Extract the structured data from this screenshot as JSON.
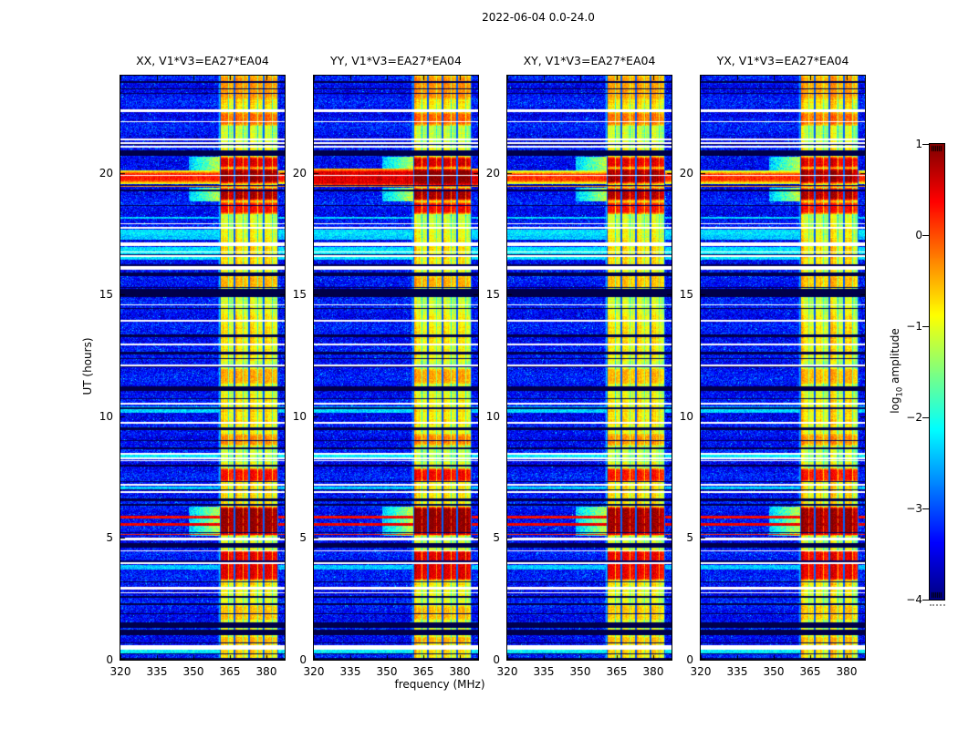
{
  "figure": {
    "title": "2022-06-04 0.0-24.0",
    "xlabel": "frequency (MHz)",
    "ylabel": "UT (hours)"
  },
  "axes": {
    "x_ticks": [
      320,
      335,
      350,
      365,
      380
    ],
    "x_tick_labels": [
      "320",
      "335",
      "350",
      "365",
      "380"
    ],
    "y_ticks": [
      0,
      5,
      10,
      15,
      20
    ],
    "y_tick_labels": [
      "0",
      "5",
      "10",
      "15",
      "20"
    ],
    "x_range": [
      320,
      387.5
    ],
    "y_range": [
      0,
      24
    ]
  },
  "colorbar": {
    "label_prefix": "log",
    "label_sub": "10",
    "label_suffix": " amplitude",
    "ticks": [
      1,
      0,
      -1,
      -2,
      -3,
      -4
    ],
    "tick_labels": [
      "1",
      "0",
      "−1",
      "−2",
      "−3",
      "−4"
    ],
    "range": [
      -4,
      1
    ],
    "colormap": "jet"
  },
  "chart_data": {
    "type": "heatmap",
    "title": "2022-06-04 0.0-24.0",
    "xlabel": "frequency (MHz)",
    "ylabel": "UT (hours)",
    "value_label": "log10 amplitude",
    "x_range": [
      320,
      387.5
    ],
    "y_range": [
      0,
      24
    ],
    "value_range": [
      -4,
      1
    ],
    "colormap": "jet",
    "panels": [
      {
        "title": "XX, V1*V3=EA27*EA04",
        "seed": 11,
        "boost": 0.0,
        "band_t": [
          19.7,
          19.96
        ],
        "band_v": 0.25
      },
      {
        "title": "YY, V1*V3=EA27*EA04",
        "seed": 23,
        "boost": 0.08,
        "band_t": [
          19.58,
          20.04
        ],
        "band_v": 0.55
      },
      {
        "title": "XY, V1*V3=EA27*EA04",
        "seed": 37,
        "boost": -0.05,
        "band_t": [
          19.7,
          19.94
        ],
        "band_v": 0.12
      },
      {
        "title": "YX, V1*V3=EA27*EA04",
        "seed": 51,
        "boost": -0.03,
        "band_t": [
          19.7,
          19.94
        ],
        "band_v": 0.15
      }
    ],
    "background_value": -3.35,
    "noise_sigma": 0.27,
    "rfi_band": {
      "f_start": 361,
      "f_end": 385,
      "sub_band_mhz": 6,
      "quiet_value": -1.0
    },
    "glow_start_mhz": 348,
    "scan_line_spacing_hours": 0.42,
    "events": [
      [
        23.02,
        24.0,
        "burst",
        -0.35,
        0
      ],
      [
        23.7,
        23.76,
        "black",
        0
      ],
      [
        23.42,
        23.47,
        "black",
        0
      ],
      [
        22.52,
        22.63,
        "white",
        0
      ],
      [
        21.95,
        22.5,
        "burst",
        -0.12,
        0
      ],
      [
        22.08,
        22.14,
        "white",
        0
      ],
      [
        21.36,
        21.42,
        "white",
        0
      ],
      [
        21.21,
        21.27,
        "white",
        0
      ],
      [
        21.06,
        21.12,
        "white",
        0
      ],
      [
        20.72,
        20.92,
        "black",
        0
      ],
      [
        20.2,
        20.68,
        "burst",
        0.55,
        1
      ],
      [
        19.55,
        20.2,
        "burst",
        0.9,
        1
      ],
      [
        19.42,
        19.48,
        "orange",
        -0.35
      ],
      [
        19.25,
        19.31,
        "black",
        0
      ],
      [
        18.85,
        19.4,
        "burst",
        0.8,
        1
      ],
      [
        18.3,
        18.82,
        "burst",
        0.35,
        0
      ],
      [
        18.12,
        18.2,
        "cyan",
        0
      ],
      [
        17.88,
        17.94,
        "white",
        0
      ],
      [
        17.72,
        17.78,
        "white",
        0
      ],
      [
        17.25,
        17.66,
        "cyan",
        0
      ],
      [
        16.98,
        17.16,
        "white",
        0
      ],
      [
        16.45,
        16.95,
        "cyan",
        0
      ],
      [
        16.73,
        16.79,
        "white",
        0
      ],
      [
        16.55,
        16.61,
        "white",
        0
      ],
      [
        16.02,
        16.18,
        "white",
        0
      ],
      [
        15.78,
        15.93,
        "black",
        0
      ],
      [
        15.27,
        15.75,
        "burst",
        -0.5,
        0
      ],
      [
        14.9,
        15.22,
        "black",
        0
      ],
      [
        14.55,
        14.62,
        "white",
        0
      ],
      [
        14.4,
        14.46,
        "black",
        0
      ],
      [
        13.9,
        13.97,
        "white",
        0
      ],
      [
        13.25,
        13.38,
        "black",
        0
      ],
      [
        12.92,
        12.98,
        "white",
        0
      ],
      [
        12.55,
        12.66,
        "black",
        0
      ],
      [
        12.05,
        12.12,
        "white",
        0
      ],
      [
        11.35,
        11.95,
        "burst",
        -0.45,
        0
      ],
      [
        11.05,
        11.25,
        "black",
        0
      ],
      [
        10.5,
        10.57,
        "white",
        0
      ],
      [
        10.15,
        10.42,
        "cyan",
        0
      ],
      [
        9.7,
        9.77,
        "white",
        0
      ],
      [
        9.45,
        9.55,
        "black",
        0
      ],
      [
        8.8,
        9.28,
        "burst",
        -0.3,
        0
      ],
      [
        8.65,
        8.72,
        "black",
        0
      ],
      [
        8.44,
        8.5,
        "white",
        0
      ],
      [
        8.33,
        8.42,
        "cyan",
        0
      ],
      [
        8.24,
        8.3,
        "white",
        0
      ],
      [
        7.95,
        8.03,
        "black",
        0
      ],
      [
        7.3,
        7.88,
        "burst",
        0.35,
        0
      ],
      [
        7.15,
        7.22,
        "white",
        0
      ],
      [
        6.95,
        7.12,
        "cyan",
        0
      ],
      [
        6.85,
        6.91,
        "white",
        0
      ],
      [
        6.5,
        6.62,
        "black",
        0
      ],
      [
        6.33,
        6.42,
        "black",
        0
      ],
      [
        5.1,
        6.3,
        "burst",
        0.9,
        1
      ],
      [
        5.8,
        5.91,
        "redline",
        0.35
      ],
      [
        5.5,
        5.63,
        "redline",
        0.45
      ],
      [
        5.12,
        5.18,
        "redline",
        0.2
      ],
      [
        4.9,
        5.01,
        "white",
        0
      ],
      [
        4.6,
        4.8,
        "black",
        0
      ],
      [
        3.25,
        4.5,
        "burst",
        0.5,
        0
      ],
      [
        3.95,
        4.02,
        "white",
        0
      ],
      [
        3.7,
        3.9,
        "cyan",
        0
      ],
      [
        2.9,
        3.01,
        "white",
        0
      ],
      [
        2.55,
        2.63,
        "black",
        0
      ],
      [
        2.25,
        2.33,
        "black",
        0
      ],
      [
        1.65,
        2.2,
        "burst",
        -0.55,
        0
      ],
      [
        1.3,
        1.52,
        "black",
        0
      ],
      [
        1.0,
        1.22,
        "black",
        0
      ],
      [
        0.65,
        0.95,
        "burst",
        -0.5,
        0
      ],
      [
        0.42,
        0.6,
        "white",
        0
      ],
      [
        0.22,
        0.4,
        "cyan",
        0
      ],
      [
        0.0,
        0.08,
        "black",
        0
      ]
    ]
  }
}
